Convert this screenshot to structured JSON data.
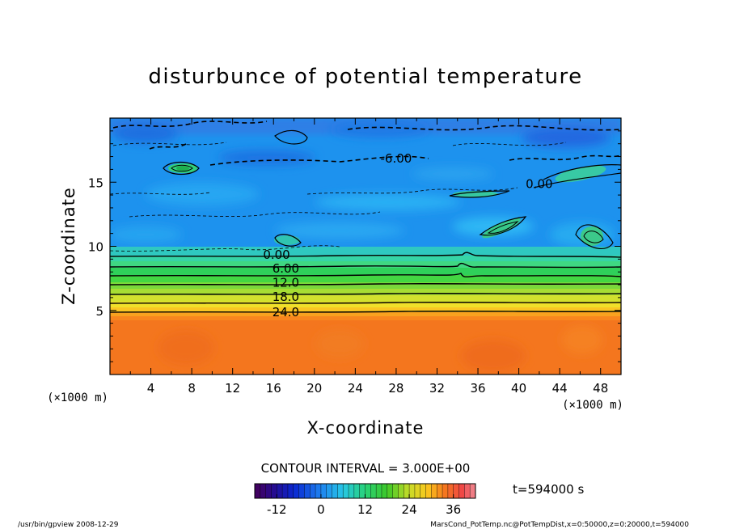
{
  "chart_data": {
    "type": "heatmap",
    "title": "disturbunce of potential temperature",
    "xlabel": "X-coordinate",
    "ylabel": "Z-coordinate",
    "x_unit": "(×1000 m)",
    "z_unit": "(×1000 m)",
    "xlim": [
      0,
      50
    ],
    "ylim": [
      0,
      20
    ],
    "x_ticks": [
      "4",
      "8",
      "12",
      "16",
      "20",
      "24",
      "28",
      "32",
      "36",
      "40",
      "44",
      "48"
    ],
    "y_ticks": [
      "5",
      "10",
      "15"
    ],
    "contour_labels": [
      {
        "text": "-6.00",
        "x": 28.0,
        "z": 16.6
      },
      {
        "text": "0.00",
        "x": 42.0,
        "z": 14.6
      },
      {
        "text": "0.00",
        "x": 16.3,
        "z": 9.1
      },
      {
        "text": "6.00",
        "x": 17.2,
        "z": 8.0
      },
      {
        "text": "12.0",
        "x": 17.2,
        "z": 6.9
      },
      {
        "text": "18.0",
        "x": 17.2,
        "z": 5.8
      },
      {
        "text": "24.0",
        "x": 17.2,
        "z": 4.6
      }
    ],
    "contour_interval": "CONTOUR INTERVAL = 3.000E+00",
    "time": "t=594000 s",
    "colorbar": {
      "ticks": [
        "-12",
        "0",
        "12",
        "24",
        "36"
      ],
      "tick_values": [
        -12,
        0,
        12,
        24,
        36
      ],
      "min": -18,
      "max": 42
    }
  },
  "footer": {
    "left": "/usr/bin/gpview   2008-12-29",
    "right": "MarsCond_PotTemp.nc@PotTempDist,x=0:50000,z=0:20000,t=594000"
  }
}
